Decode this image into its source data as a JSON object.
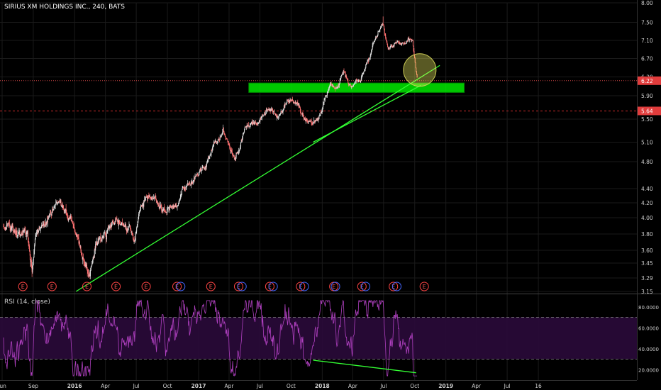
{
  "chart_data": [
    {
      "type": "candlestick",
      "title": "SIRIUS XM HOLDINGS INC., 240, BATS",
      "y_ticks": [
        8.0,
        7.5,
        7.1,
        6.7,
        6.3,
        5.9,
        5.5,
        5.1,
        4.8,
        4.4,
        4.2,
        4.0,
        3.8,
        3.6,
        3.45,
        3.29,
        3.15
      ],
      "y_tick_labels": [
        "8.00",
        "7.50",
        "7.10",
        "6.70",
        "6.30",
        "5.90",
        "5.50",
        "5.10",
        "4.80",
        "4.40",
        "4.20",
        "4.00",
        "3.80",
        "3.60",
        "3.45",
        "3.29",
        "3.15"
      ],
      "x_tick_labels": [
        "Jun",
        "Sep",
        "2016",
        "Apr",
        "Jul",
        "Oct",
        "2017",
        "Apr",
        "Jul",
        "Oct",
        "2018",
        "Apr",
        "Jul",
        "Oct",
        "2019",
        "Apr",
        "Jul",
        "16"
      ],
      "ylim": [
        3.15,
        8.0
      ],
      "price_path": [
        [
          "2015-06-01",
          3.9
        ],
        [
          "2015-07-10",
          3.75
        ],
        [
          "2015-08-10",
          3.85
        ],
        [
          "2015-08-24",
          3.4
        ],
        [
          "2015-09-05",
          3.8
        ],
        [
          "2015-10-01",
          3.95
        ],
        [
          "2015-11-01",
          4.15
        ],
        [
          "2015-12-01",
          4.1
        ],
        [
          "2015-12-20",
          3.95
        ],
        [
          "2016-01-15",
          3.55
        ],
        [
          "2016-02-11",
          3.3
        ],
        [
          "2016-03-01",
          3.7
        ],
        [
          "2016-04-01",
          3.85
        ],
        [
          "2016-05-01",
          3.95
        ],
        [
          "2016-06-24",
          3.75
        ],
        [
          "2016-07-10",
          4.15
        ],
        [
          "2016-08-01",
          4.3
        ],
        [
          "2016-09-15",
          4.15
        ],
        [
          "2016-10-20",
          4.1
        ],
        [
          "2016-11-15",
          4.45
        ],
        [
          "2016-12-15",
          4.5
        ],
        [
          "2017-01-15",
          4.75
        ],
        [
          "2017-02-20",
          5.1
        ],
        [
          "2017-03-10",
          5.3
        ],
        [
          "2017-03-25",
          5.1
        ],
        [
          "2017-04-15",
          4.85
        ],
        [
          "2017-05-15",
          5.3
        ],
        [
          "2017-06-20",
          5.5
        ],
        [
          "2017-07-20",
          5.7
        ],
        [
          "2017-08-20",
          5.55
        ],
        [
          "2017-09-20",
          5.8
        ],
        [
          "2017-10-20",
          5.75
        ],
        [
          "2017-11-15",
          5.45
        ],
        [
          "2017-12-01",
          5.3
        ],
        [
          "2017-12-20",
          5.55
        ],
        [
          "2018-01-20",
          6.1
        ],
        [
          "2018-02-10",
          6.05
        ],
        [
          "2018-03-01",
          6.4
        ],
        [
          "2018-03-20",
          6.15
        ],
        [
          "2018-04-20",
          6.35
        ],
        [
          "2018-05-20",
          6.8
        ],
        [
          "2018-06-25",
          7.5
        ],
        [
          "2018-07-10",
          6.9
        ],
        [
          "2018-08-01",
          7.1
        ],
        [
          "2018-09-01",
          7.05
        ],
        [
          "2018-09-20",
          7.1
        ],
        [
          "2018-09-28",
          6.6
        ],
        [
          "2018-10-05",
          6.22
        ]
      ],
      "levels": [
        {
          "value": 6.22,
          "label": "6.22",
          "color": "#ff5555"
        },
        {
          "value": 5.64,
          "label": "5.64",
          "color": "#ff3333"
        }
      ],
      "support_zone": {
        "from": 5.97,
        "to": 6.17,
        "x_from": "2017-05-25",
        "x_to": "2019-02-20",
        "color": "#00ff00"
      },
      "trendlines": [
        {
          "from": [
            "2016-01-01",
            3.15
          ],
          "to": [
            "2018-12-10",
            6.55
          ],
          "color": "#33ff33"
        },
        {
          "from": [
            "2017-12-01",
            5.1
          ],
          "to": [
            "2018-10-15",
            6.12
          ],
          "color": "#33ff33"
        }
      ],
      "highlight_circle": {
        "x": "2018-09-25",
        "y": 6.45,
        "color": "#ffff66"
      },
      "earnings_markers": {
        "label": "E",
        "dates": [
          "2015-07-28",
          "2015-10-22",
          "2016-02-02",
          "2016-04-28",
          "2016-07-26",
          "2016-10-25",
          "2017-02-02",
          "2017-04-25",
          "2017-07-26",
          "2017-10-25",
          "2018-01-31",
          "2018-04-24",
          "2018-07-26",
          "2018-10-25"
        ],
        "dividend_dates": [
          "2016-11-05",
          "2017-05-05",
          "2017-08-05",
          "2017-11-05",
          "2018-02-05",
          "2018-05-05",
          "2018-08-05"
        ]
      }
    },
    {
      "type": "line",
      "title": "RSI (14, close)",
      "y_ticks": [
        80.0,
        60.0,
        40.0,
        20.0
      ],
      "y_tick_labels": [
        "80.0000",
        "60.0000",
        "40.0000",
        "20.0000"
      ],
      "ylim": [
        10,
        90
      ],
      "overbought": 70,
      "oversold": 30,
      "shade_color": "#2a0a3a",
      "line_color": "#b040c0",
      "divergence_line": {
        "from": [
          "2017-12-01",
          29
        ],
        "to": [
          "2018-10-01",
          17
        ],
        "color": "#33ff33"
      }
    }
  ]
}
